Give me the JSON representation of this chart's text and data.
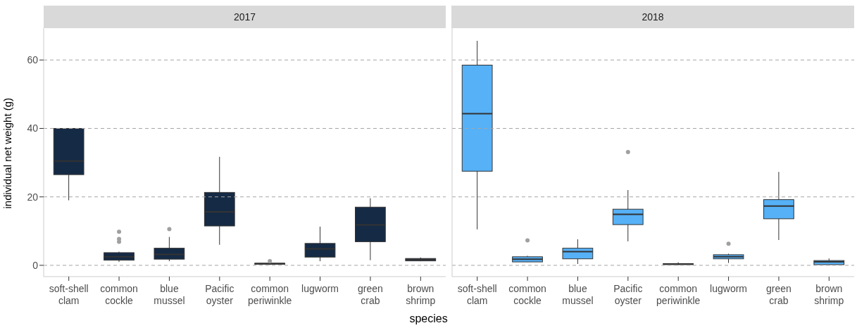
{
  "chart_data": [
    {
      "type": "box",
      "title": "2017",
      "ylabel": "individual net weight (g)",
      "xlabel": "species",
      "color": "#152a45",
      "grid": "y",
      "ylim": [
        -3.3,
        69.3
      ],
      "yticks": [
        0,
        20,
        40,
        60
      ],
      "categories": [
        "soft-shell clam",
        "common cockle",
        "blue mussel",
        "Pacific oyster",
        "common periwinkle",
        "lugworm",
        "green crab",
        "brown shrimp"
      ],
      "boxes": [
        {
          "low": 19,
          "q1": 26.5,
          "median": 30.5,
          "q3": 40,
          "high": 40
        },
        {
          "low": 1,
          "q1": 1.5,
          "median": 2.5,
          "q3": 3.7,
          "high": 4,
          "outliers": [
            6.9,
            7.7,
            9.8
          ]
        },
        {
          "low": 1.2,
          "q1": 1.8,
          "median": 3.2,
          "q3": 5,
          "high": 8.3,
          "outliers": [
            10.6
          ]
        },
        {
          "low": 6,
          "q1": 11.5,
          "median": 15.6,
          "q3": 21.3,
          "high": 31.7
        },
        {
          "low": 0.1,
          "q1": 0.3,
          "median": 0.5,
          "q3": 0.6,
          "high": 0.8,
          "outliers": [
            1.2
          ]
        },
        {
          "low": 1.2,
          "q1": 2.4,
          "median": 4.8,
          "q3": 6.4,
          "high": 11.3
        },
        {
          "low": 1.5,
          "q1": 6.9,
          "median": 11.8,
          "q3": 17,
          "high": 19.6
        },
        {
          "low": 1.2,
          "q1": 1.3,
          "median": 1.7,
          "q3": 2,
          "high": 2.3
        }
      ]
    },
    {
      "type": "box",
      "title": "2018",
      "color": "#56b1f7",
      "grid": "y",
      "ylim": [
        -3.3,
        69.3
      ],
      "yticks": [
        0,
        20,
        40,
        60
      ],
      "tick_labels": "x",
      "categories": [
        "soft-shell clam",
        "common cockle",
        "blue mussel",
        "Pacific oyster",
        "common periwinkle",
        "lugworm",
        "green crab",
        "brown shrimp"
      ],
      "boxes": [
        {
          "low": 10.5,
          "q1": 27.5,
          "median": 44.3,
          "q3": 58.5,
          "high": 65.6
        },
        {
          "low": 1,
          "q1": 1,
          "median": 1.8,
          "q3": 2.5,
          "high": 2.8,
          "outliers": [
            7.3
          ]
        },
        {
          "low": 0.4,
          "q1": 1.9,
          "median": 4,
          "q3": 5,
          "high": 7.6
        },
        {
          "low": 7,
          "q1": 11.9,
          "median": 14.9,
          "q3": 16.4,
          "high": 22,
          "outliers": [
            33.1
          ]
        },
        {
          "low": 0.1,
          "q1": 0.2,
          "median": 0.4,
          "q3": 0.5,
          "high": 0.9
        },
        {
          "low": 0.7,
          "q1": 1.9,
          "median": 2.5,
          "q3": 3.1,
          "high": 3.4,
          "outliers": [
            6.3
          ]
        },
        {
          "low": 7.4,
          "q1": 13.6,
          "median": 17.3,
          "q3": 19.2,
          "high": 27.3
        },
        {
          "low": 0.1,
          "q1": 0.2,
          "median": 1,
          "q3": 1.4,
          "high": 2
        }
      ]
    }
  ]
}
